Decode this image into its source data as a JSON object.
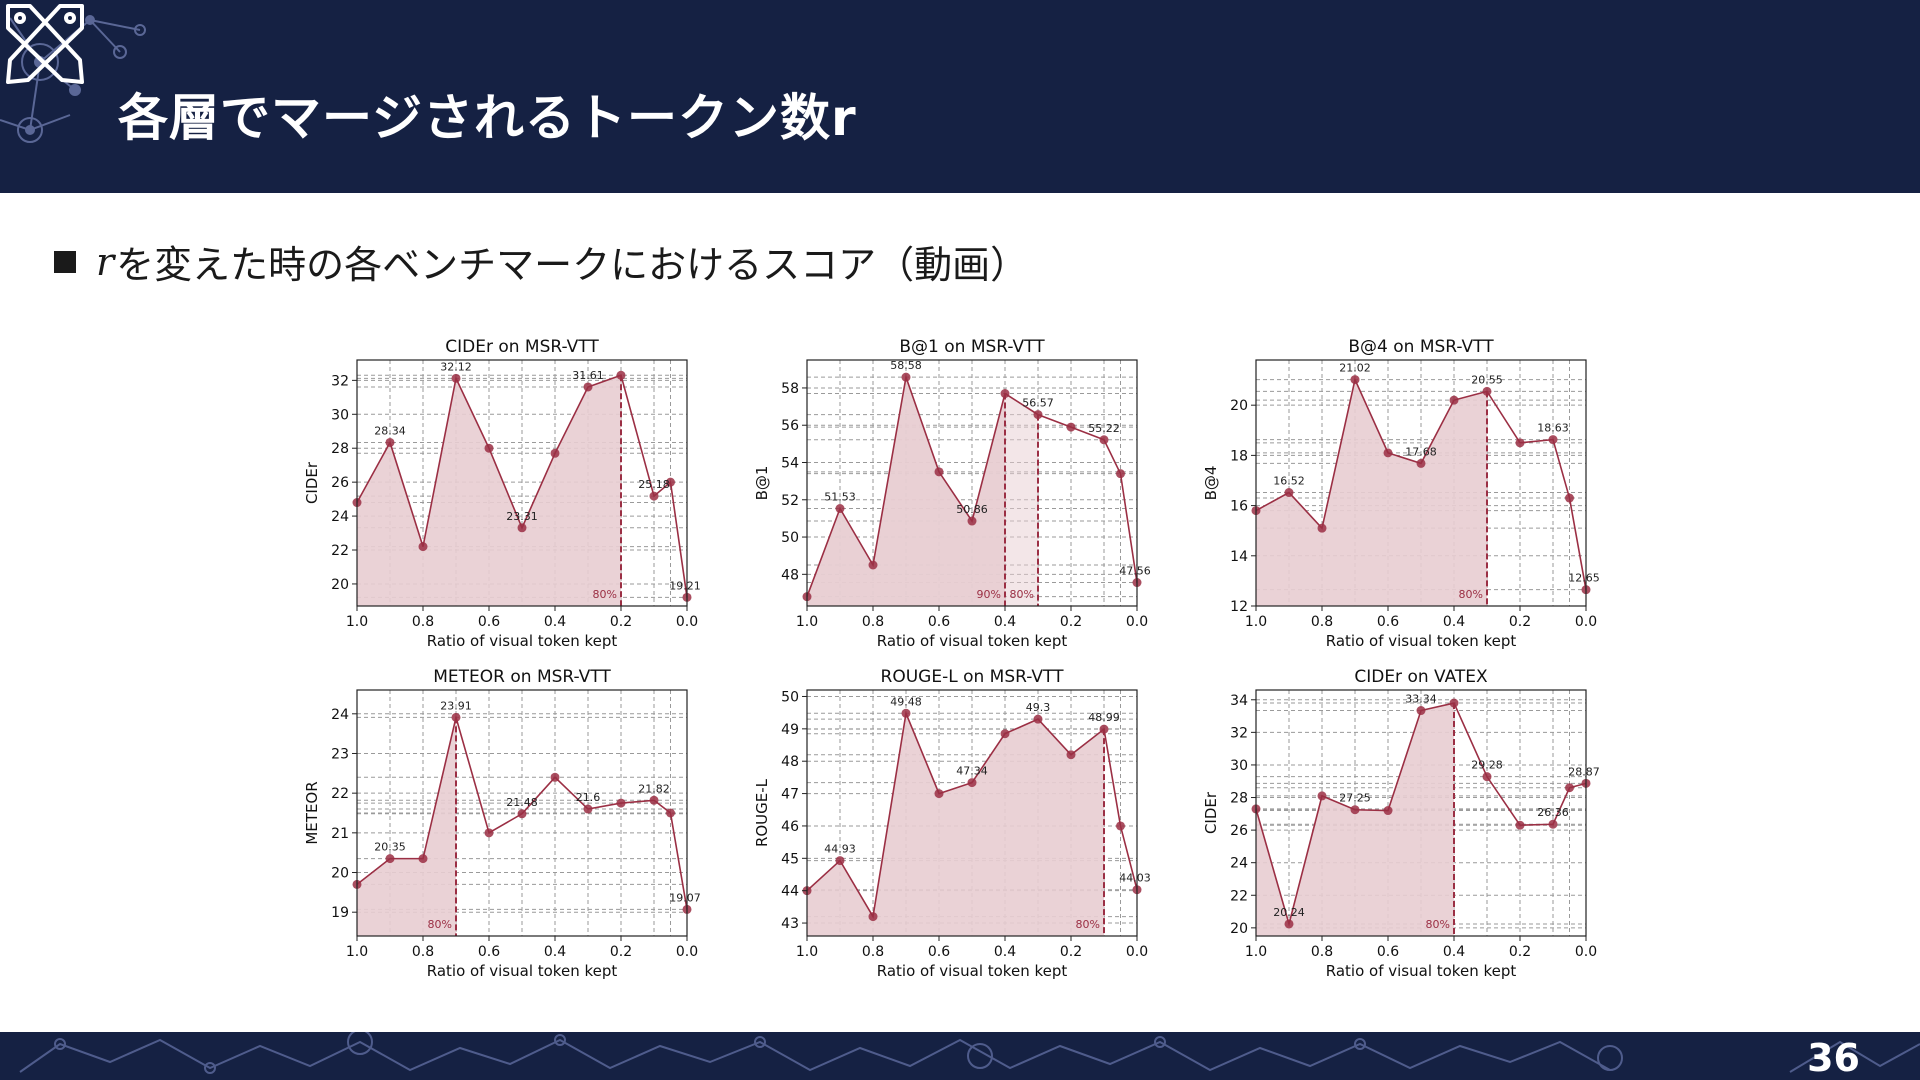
{
  "slide": {
    "title": "各層でマージされるトークン数r",
    "bullet_var": "r",
    "bullet_text": "を変えた時の各ベンチマークにおけるスコア（動画）",
    "page_number": "36"
  },
  "colors": {
    "navy": "#152143",
    "accent": "#9b2f44",
    "fill": "#e8cdd2"
  },
  "icons": [
    "network-decoration-icon",
    "crossed-tools-logo-icon",
    "bullet-square-icon"
  ],
  "chart_data": [
    {
      "type": "area",
      "title": "CIDEr on MSR-VTT",
      "xlabel": "Ratio of visual token kept",
      "ylabel": "CIDEr",
      "x": [
        1.0,
        0.9,
        0.8,
        0.7,
        0.6,
        0.5,
        0.4,
        0.3,
        0.2,
        0.1,
        0.05,
        0.0
      ],
      "values": [
        24.8,
        28.34,
        22.2,
        32.12,
        28.0,
        23.31,
        27.7,
        31.61,
        32.3,
        25.18,
        26.0,
        19.21
      ],
      "labels": {
        "1": "28.34",
        "3": "32.12",
        "5": "23.31",
        "7": "31.61",
        "9": "25.18",
        "11": "19.21"
      },
      "xlim": [
        1.0,
        0.0
      ],
      "ylim": [
        18.7,
        33.2
      ],
      "yticks": [
        20,
        22,
        24,
        26,
        28,
        30,
        32
      ],
      "xticks": [
        1.0,
        0.8,
        0.6,
        0.4,
        0.2,
        0.0
      ],
      "shade_to": 0.2,
      "shade_light_to": null,
      "vlines": [
        {
          "x": 0.2,
          "label": "80%"
        }
      ]
    },
    {
      "type": "area",
      "title": "B@1 on MSR-VTT",
      "xlabel": "Ratio of visual token kept",
      "ylabel": "B@1",
      "x": [
        1.0,
        0.9,
        0.8,
        0.7,
        0.6,
        0.5,
        0.4,
        0.3,
        0.2,
        0.1,
        0.05,
        0.0
      ],
      "values": [
        46.8,
        51.53,
        48.5,
        58.58,
        53.5,
        50.86,
        57.7,
        56.57,
        55.9,
        55.22,
        53.4,
        47.56
      ],
      "labels": {
        "1": "51.53",
        "3": "58.58",
        "5": "50.86",
        "7": "56.57",
        "9": "55.22",
        "11": "47.56"
      },
      "xlim": [
        1.0,
        0.0
      ],
      "ylim": [
        46.3,
        59.5
      ],
      "yticks": [
        48,
        50,
        52,
        54,
        56,
        58
      ],
      "xticks": [
        1.0,
        0.8,
        0.6,
        0.4,
        0.2,
        0.0
      ],
      "shade_to": 0.4,
      "shade_light_to": 0.3,
      "vlines": [
        {
          "x": 0.4,
          "label": "90%"
        },
        {
          "x": 0.3,
          "label": "80%"
        }
      ]
    },
    {
      "type": "area",
      "title": "B@4 on MSR-VTT",
      "xlabel": "Ratio of visual token kept",
      "ylabel": "B@4",
      "x": [
        1.0,
        0.9,
        0.8,
        0.7,
        0.6,
        0.5,
        0.4,
        0.3,
        0.2,
        0.1,
        0.05,
        0.0
      ],
      "values": [
        15.8,
        16.52,
        15.1,
        21.02,
        18.1,
        17.68,
        20.2,
        20.55,
        18.5,
        18.63,
        16.3,
        12.65
      ],
      "labels": {
        "1": "16.52",
        "3": "21.02",
        "5": "17.68",
        "7": "20.55",
        "9": "18.63",
        "11": "12.65"
      },
      "xlim": [
        1.0,
        0.0
      ],
      "ylim": [
        12.0,
        21.8
      ],
      "yticks": [
        12,
        14,
        16,
        18,
        20
      ],
      "xticks": [
        1.0,
        0.8,
        0.6,
        0.4,
        0.2,
        0.0
      ],
      "shade_to": 0.3,
      "shade_light_to": null,
      "vlines": [
        {
          "x": 0.3,
          "label": "80%"
        }
      ]
    },
    {
      "type": "area",
      "title": "METEOR on MSR-VTT",
      "xlabel": "Ratio of visual token kept",
      "ylabel": "METEOR",
      "x": [
        1.0,
        0.9,
        0.8,
        0.7,
        0.6,
        0.5,
        0.4,
        0.3,
        0.2,
        0.1,
        0.05,
        0.0
      ],
      "values": [
        19.7,
        20.35,
        20.35,
        23.91,
        21.0,
        21.48,
        22.4,
        21.6,
        21.75,
        21.82,
        21.5,
        19.07
      ],
      "labels": {
        "1": "20.35",
        "3": "23.91",
        "5": "21.48",
        "7": "21.6",
        "9": "21.82",
        "11": "19.07"
      },
      "xlim": [
        1.0,
        0.0
      ],
      "ylim": [
        18.4,
        24.6
      ],
      "yticks": [
        19,
        20,
        21,
        22,
        23,
        24
      ],
      "xticks": [
        1.0,
        0.8,
        0.6,
        0.4,
        0.2,
        0.0
      ],
      "shade_to": 0.7,
      "shade_light_to": null,
      "vlines": [
        {
          "x": 0.7,
          "label": "80%"
        }
      ]
    },
    {
      "type": "area",
      "title": "ROUGE-L on MSR-VTT",
      "xlabel": "Ratio of visual token kept",
      "ylabel": "ROUGE-L",
      "x": [
        1.0,
        0.9,
        0.8,
        0.7,
        0.6,
        0.5,
        0.4,
        0.3,
        0.2,
        0.1,
        0.05,
        0.0
      ],
      "values": [
        44.0,
        44.93,
        43.2,
        49.48,
        47.0,
        47.34,
        48.85,
        49.3,
        48.2,
        48.99,
        46.0,
        44.03
      ],
      "labels": {
        "1": "44.93",
        "3": "49.48",
        "5": "47.34",
        "7": "49.3",
        "9": "48.99",
        "11": "44.03"
      },
      "xlim": [
        1.0,
        0.0
      ],
      "ylim": [
        42.6,
        50.2
      ],
      "yticks": [
        43,
        44,
        45,
        46,
        47,
        48,
        49,
        50
      ],
      "xticks": [
        1.0,
        0.8,
        0.6,
        0.4,
        0.2,
        0.0
      ],
      "shade_to": 0.1,
      "shade_light_to": null,
      "vlines": [
        {
          "x": 0.1,
          "label": "80%"
        }
      ]
    },
    {
      "type": "area",
      "title": "CIDEr on VATEX",
      "xlabel": "Ratio of visual token kept",
      "ylabel": "CIDEr",
      "x": [
        1.0,
        0.9,
        0.8,
        0.7,
        0.6,
        0.5,
        0.4,
        0.3,
        0.2,
        0.1,
        0.05,
        0.0
      ],
      "values": [
        27.3,
        20.24,
        28.1,
        27.25,
        27.2,
        33.34,
        33.8,
        29.28,
        26.3,
        26.36,
        28.6,
        28.87
      ],
      "labels": {
        "1": "20.24",
        "3": "27.25",
        "5": "33.34",
        "7": "29.28",
        "9": "26.36",
        "11": "28.87"
      },
      "xlim": [
        1.0,
        0.0
      ],
      "ylim": [
        19.5,
        34.6
      ],
      "yticks": [
        20,
        22,
        24,
        26,
        28,
        30,
        32,
        34
      ],
      "xticks": [
        1.0,
        0.8,
        0.6,
        0.4,
        0.2,
        0.0
      ],
      "shade_to": 0.4,
      "shade_light_to": null,
      "vlines": [
        {
          "x": 0.4,
          "label": "80%"
        }
      ]
    }
  ]
}
